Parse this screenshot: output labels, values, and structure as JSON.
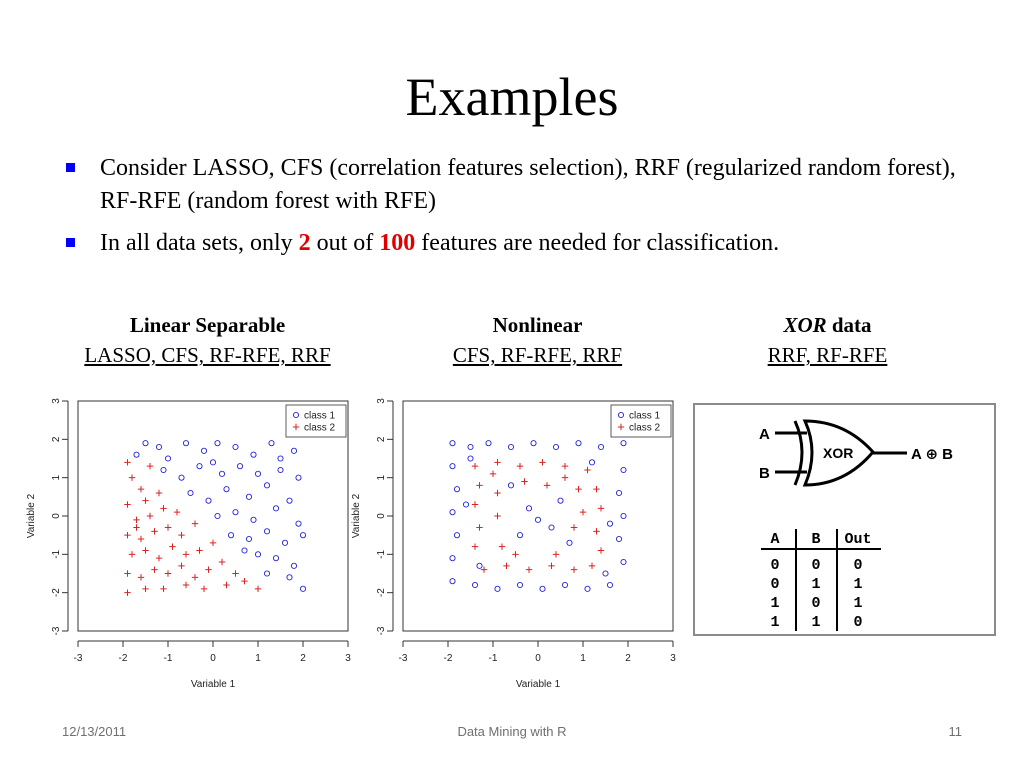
{
  "title": "Examples",
  "bullets": {
    "b1": "Consider LASSO, CFS (correlation features selection), RRF (regularized random forest), RF-RFE (random forest with RFE)",
    "b2_pre": "In all data sets, only ",
    "b2_num1": "2",
    "b2_mid": " out of ",
    "b2_num2": "100",
    "b2_post": " features are needed for classification."
  },
  "panels": {
    "p1": {
      "heading": "Linear Separable",
      "methods": "LASSO, CFS, RF-RFE, RRF"
    },
    "p2": {
      "heading": "Nonlinear",
      "methods": "CFS, RF-RFE, RRF"
    },
    "p3": {
      "heading_italic": "XOR",
      "heading_rest": " data",
      "methods": "RRF, RF-RFE"
    }
  },
  "xor_diagram": {
    "input_a": "A",
    "input_b": "B",
    "gate_label": "XOR",
    "output_label": "A ⊕ B",
    "truth_table": {
      "headers": [
        "A",
        "B",
        "Out"
      ],
      "rows": [
        [
          "0",
          "0",
          "0"
        ],
        [
          "0",
          "1",
          "1"
        ],
        [
          "1",
          "0",
          "1"
        ],
        [
          "1",
          "1",
          "0"
        ]
      ]
    }
  },
  "chart_data": [
    {
      "type": "scatter",
      "title": "",
      "xlabel": "Variable 1",
      "ylabel": "Variable 2",
      "xlim": [
        -3,
        3
      ],
      "ylim": [
        -3,
        3
      ],
      "xticks": [
        "-3",
        "-2",
        "-1",
        "0",
        "1",
        "2",
        "3"
      ],
      "yticks": [
        "-3",
        "-2",
        "-1",
        "0",
        "1",
        "2",
        "3"
      ],
      "legend": {
        "placement": "top-right",
        "entries": [
          "class 1",
          "class 2"
        ]
      },
      "series": [
        {
          "name": "class 1",
          "marker": "circle",
          "color": "#2222dd",
          "points": [
            [
              -1.7,
              1.6
            ],
            [
              -1.5,
              1.9
            ],
            [
              -1.2,
              1.8
            ],
            [
              -1.0,
              1.5
            ],
            [
              -0.6,
              1.9
            ],
            [
              -0.2,
              1.7
            ],
            [
              0.1,
              1.9
            ],
            [
              0.5,
              1.8
            ],
            [
              0.9,
              1.6
            ],
            [
              1.3,
              1.9
            ],
            [
              1.8,
              1.7
            ],
            [
              -1.1,
              1.2
            ],
            [
              -0.7,
              1.0
            ],
            [
              -0.3,
              1.3
            ],
            [
              0.2,
              1.1
            ],
            [
              0.6,
              1.3
            ],
            [
              1.0,
              1.1
            ],
            [
              1.5,
              1.2
            ],
            [
              1.9,
              1.0
            ],
            [
              -0.5,
              0.6
            ],
            [
              -0.1,
              0.4
            ],
            [
              0.3,
              0.7
            ],
            [
              0.8,
              0.5
            ],
            [
              1.2,
              0.8
            ],
            [
              1.7,
              0.4
            ],
            [
              0.1,
              0.0
            ],
            [
              0.5,
              0.1
            ],
            [
              0.9,
              -0.1
            ],
            [
              1.4,
              0.2
            ],
            [
              1.9,
              -0.2
            ],
            [
              0.4,
              -0.5
            ],
            [
              0.8,
              -0.6
            ],
            [
              1.2,
              -0.4
            ],
            [
              1.6,
              -0.7
            ],
            [
              2.0,
              -0.5
            ],
            [
              1.0,
              -1.0
            ],
            [
              1.4,
              -1.1
            ],
            [
              1.8,
              -1.3
            ],
            [
              1.2,
              -1.5
            ],
            [
              1.7,
              -1.6
            ],
            [
              2.0,
              -1.9
            ],
            [
              0.7,
              -0.9
            ],
            [
              1.5,
              1.5
            ],
            [
              0.0,
              1.4
            ]
          ]
        },
        {
          "name": "class 2",
          "marker": "plus",
          "color": "#dd2222",
          "points": [
            [
              -1.9,
              1.4
            ],
            [
              -1.8,
              1.0
            ],
            [
              -1.6,
              0.7
            ],
            [
              -1.9,
              0.3
            ],
            [
              -1.5,
              0.4
            ],
            [
              -1.2,
              0.6
            ],
            [
              -1.7,
              -0.1
            ],
            [
              -1.4,
              0.0
            ],
            [
              -1.1,
              0.2
            ],
            [
              -0.8,
              0.1
            ],
            [
              -1.9,
              -0.5
            ],
            [
              -1.6,
              -0.6
            ],
            [
              -1.3,
              -0.4
            ],
            [
              -1.0,
              -0.3
            ],
            [
              -0.7,
              -0.5
            ],
            [
              -0.4,
              -0.2
            ],
            [
              -1.8,
              -1.0
            ],
            [
              -1.5,
              -0.9
            ],
            [
              -1.2,
              -1.1
            ],
            [
              -0.9,
              -0.8
            ],
            [
              -0.6,
              -1.0
            ],
            [
              -0.3,
              -0.9
            ],
            [
              0.0,
              -0.7
            ],
            [
              -1.9,
              -1.5
            ],
            [
              -1.6,
              -1.6
            ],
            [
              -1.3,
              -1.4
            ],
            [
              -1.0,
              -1.5
            ],
            [
              -0.7,
              -1.3
            ],
            [
              -0.4,
              -1.6
            ],
            [
              -0.1,
              -1.4
            ],
            [
              0.2,
              -1.2
            ],
            [
              0.5,
              -1.5
            ],
            [
              -1.9,
              -2.0
            ],
            [
              -1.5,
              -1.9
            ],
            [
              -1.1,
              -1.9
            ],
            [
              -0.6,
              -1.8
            ],
            [
              -0.2,
              -1.9
            ],
            [
              0.3,
              -1.8
            ],
            [
              0.7,
              -1.7
            ],
            [
              1.0,
              -1.9
            ],
            [
              -1.4,
              1.3
            ],
            [
              -1.7,
              -0.3
            ]
          ]
        }
      ]
    },
    {
      "type": "scatter",
      "title": "",
      "xlabel": "Variable 1",
      "ylabel": "Variable 2",
      "xlim": [
        -3,
        3
      ],
      "ylim": [
        -3,
        3
      ],
      "xticks": [
        "-3",
        "-2",
        "-1",
        "0",
        "1",
        "2",
        "3"
      ],
      "yticks": [
        "-3",
        "-2",
        "-1",
        "0",
        "1",
        "2",
        "3"
      ],
      "legend": {
        "placement": "top-right",
        "entries": [
          "class 1",
          "class 2"
        ]
      },
      "series": [
        {
          "name": "class 1",
          "marker": "circle",
          "color": "#2222dd",
          "points": [
            [
              -1.9,
              1.9
            ],
            [
              -1.5,
              1.8
            ],
            [
              -1.1,
              1.9
            ],
            [
              -0.6,
              1.8
            ],
            [
              -0.1,
              1.9
            ],
            [
              0.4,
              1.8
            ],
            [
              0.9,
              1.9
            ],
            [
              1.4,
              1.8
            ],
            [
              1.9,
              1.9
            ],
            [
              -1.9,
              1.3
            ],
            [
              1.9,
              1.2
            ],
            [
              -1.8,
              0.7
            ],
            [
              1.8,
              0.6
            ],
            [
              -1.9,
              0.1
            ],
            [
              1.9,
              0.0
            ],
            [
              -1.8,
              -0.5
            ],
            [
              1.8,
              -0.6
            ],
            [
              -1.9,
              -1.1
            ],
            [
              1.9,
              -1.2
            ],
            [
              -1.9,
              -1.7
            ],
            [
              -1.4,
              -1.8
            ],
            [
              -0.9,
              -1.9
            ],
            [
              -0.4,
              -1.8
            ],
            [
              0.1,
              -1.9
            ],
            [
              0.6,
              -1.8
            ],
            [
              1.1,
              -1.9
            ],
            [
              1.6,
              -1.8
            ],
            [
              -0.2,
              0.2
            ],
            [
              0.3,
              -0.3
            ],
            [
              -0.4,
              -0.5
            ],
            [
              0.5,
              0.4
            ],
            [
              0.0,
              -0.1
            ],
            [
              -0.6,
              0.8
            ],
            [
              0.7,
              -0.7
            ],
            [
              1.2,
              1.4
            ],
            [
              -1.3,
              -1.3
            ],
            [
              1.5,
              -1.5
            ],
            [
              -1.5,
              1.5
            ],
            [
              -1.6,
              0.3
            ],
            [
              1.6,
              -0.2
            ]
          ]
        },
        {
          "name": "class 2",
          "marker": "plus",
          "color": "#dd2222",
          "points": [
            [
              -1.4,
              1.3
            ],
            [
              -0.9,
              1.4
            ],
            [
              -0.4,
              1.3
            ],
            [
              0.1,
              1.4
            ],
            [
              0.6,
              1.3
            ],
            [
              1.1,
              1.2
            ],
            [
              -1.3,
              0.8
            ],
            [
              1.3,
              0.7
            ],
            [
              -1.4,
              0.3
            ],
            [
              1.4,
              0.2
            ],
            [
              -1.3,
              -0.3
            ],
            [
              1.3,
              -0.4
            ],
            [
              -1.4,
              -0.8
            ],
            [
              1.4,
              -0.9
            ],
            [
              -1.2,
              -1.4
            ],
            [
              -0.7,
              -1.3
            ],
            [
              -0.2,
              -1.4
            ],
            [
              0.3,
              -1.3
            ],
            [
              0.8,
              -1.4
            ],
            [
              1.2,
              -1.3
            ],
            [
              -0.9,
              0.6
            ],
            [
              0.9,
              0.7
            ],
            [
              -0.8,
              -0.8
            ],
            [
              0.8,
              -0.3
            ],
            [
              -0.3,
              0.9
            ],
            [
              0.2,
              0.8
            ],
            [
              -0.9,
              0.0
            ],
            [
              1.0,
              0.1
            ],
            [
              -0.5,
              -1.0
            ],
            [
              0.4,
              -1.0
            ],
            [
              0.6,
              1.0
            ],
            [
              -1.0,
              1.1
            ]
          ]
        }
      ]
    }
  ],
  "footer": {
    "date": "12/13/2011",
    "center": "Data Mining with R",
    "page": "11"
  },
  "colors": {
    "accent_red": "#e00000",
    "bullet_blue": "#0000ff",
    "class1": "#2222dd",
    "class2": "#dd2222"
  }
}
